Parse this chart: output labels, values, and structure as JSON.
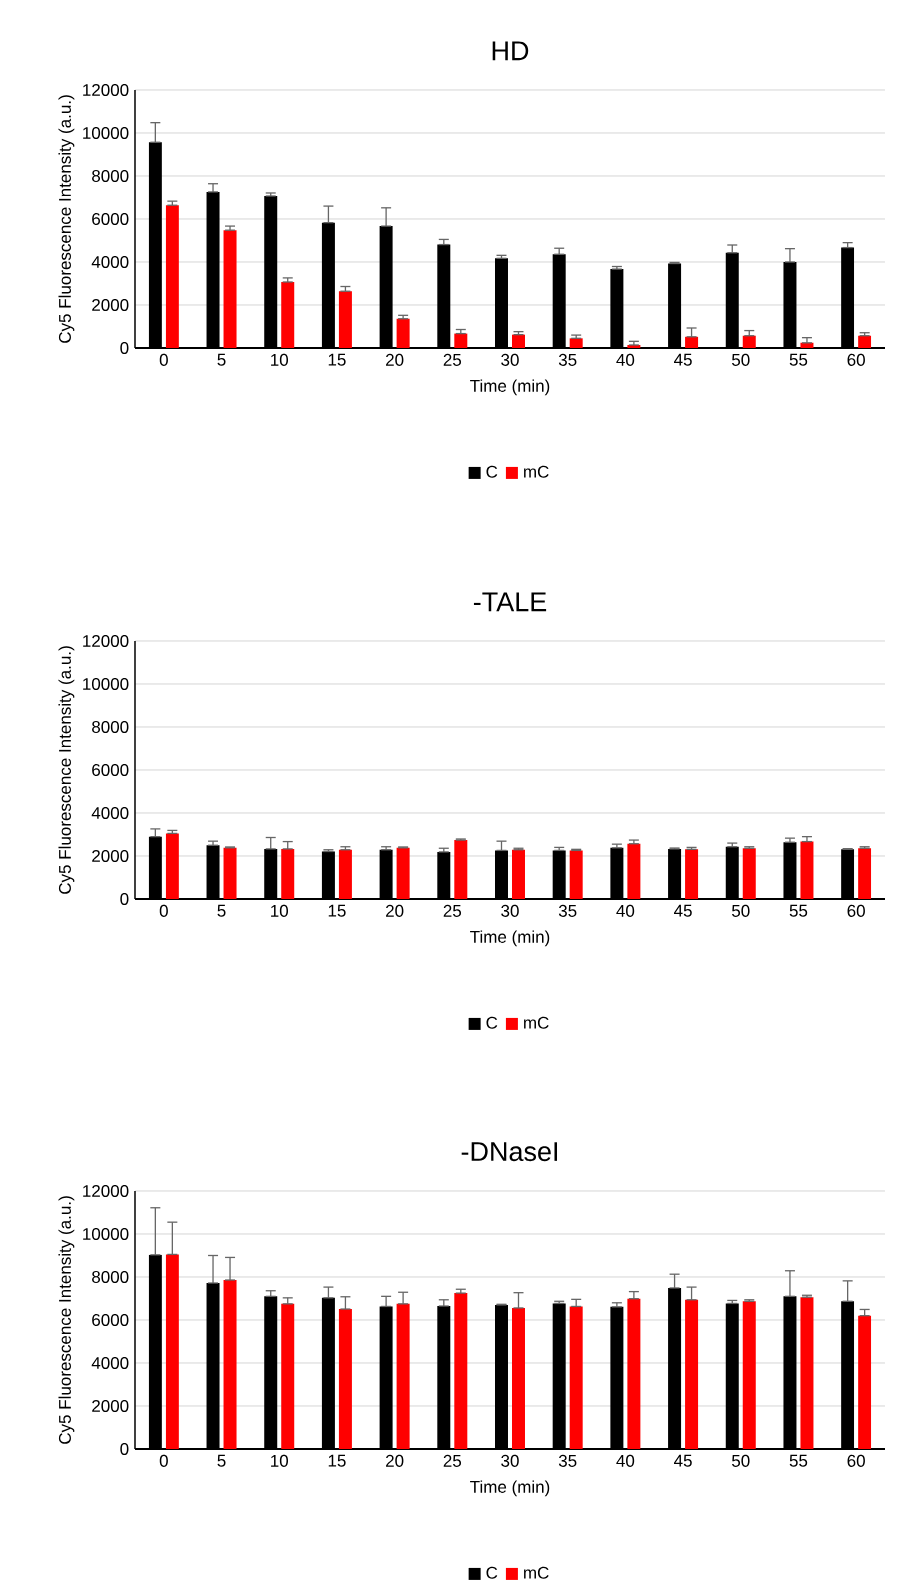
{
  "chart_data": [
    {
      "type": "bar",
      "title": "HD",
      "xlabel": "Time (min)",
      "ylabel": "Cy5 Fluorescence Intensity  (a.u.)",
      "categories": [
        "0",
        "5",
        "10",
        "15",
        "20",
        "25",
        "30",
        "35",
        "40",
        "45",
        "50",
        "55",
        "60"
      ],
      "series": [
        {
          "name": "C",
          "color": "#000000",
          "values": [
            9570,
            7260,
            7070,
            5830,
            5670,
            4810,
            4170,
            4360,
            3670,
            3930,
            4430,
            4000,
            4670
          ],
          "errors": [
            [
              9570,
              10480
            ],
            [
              7260,
              7640
            ],
            [
              7070,
              7210
            ],
            [
              5830,
              6600
            ],
            [
              5670,
              6520
            ],
            [
              4810,
              5050
            ],
            [
              4170,
              4310
            ],
            [
              4360,
              4640
            ],
            [
              3670,
              3790
            ],
            [
              3930,
              3980
            ],
            [
              4430,
              4790
            ],
            [
              4000,
              4620
            ],
            [
              4670,
              4900
            ]
          ]
        },
        {
          "name": "mC",
          "color": "#ff0000",
          "values": [
            6640,
            5480,
            3070,
            2640,
            1360,
            670,
            620,
            450,
            140,
            520,
            570,
            240,
            570
          ],
          "errors": [
            [
              6640,
              6830
            ],
            [
              5480,
              5670
            ],
            [
              3070,
              3260
            ],
            [
              2640,
              2860
            ],
            [
              1360,
              1520
            ],
            [
              670,
              860
            ],
            [
              620,
              760
            ],
            [
              450,
              600
            ],
            [
              140,
              310
            ],
            [
              520,
              930
            ],
            [
              570,
              810
            ],
            [
              240,
              480
            ],
            [
              570,
              710
            ]
          ]
        }
      ],
      "ylim": [
        0,
        12000
      ],
      "yticks": [
        0,
        2000,
        4000,
        6000,
        8000,
        10000,
        12000
      ],
      "grid": "y",
      "legend": "bottom"
    },
    {
      "type": "bar",
      "title": "-TALE",
      "xlabel": "Time (min)",
      "ylabel": "Cy5 Fluorescence Intensity (a.u.)",
      "categories": [
        "0",
        "5",
        "10",
        "15",
        "20",
        "25",
        "30",
        "35",
        "40",
        "45",
        "50",
        "55",
        "60"
      ],
      "series": [
        {
          "name": "C",
          "color": "#000000",
          "values": [
            2900,
            2500,
            2330,
            2210,
            2290,
            2190,
            2260,
            2260,
            2380,
            2330,
            2430,
            2640,
            2310
          ],
          "errors": [
            [
              2900,
              3260
            ],
            [
              2500,
              2690
            ],
            [
              2330,
              2860
            ],
            [
              2210,
              2290
            ],
            [
              2290,
              2430
            ],
            [
              2190,
              2360
            ],
            [
              2260,
              2690
            ],
            [
              2260,
              2400
            ],
            [
              2380,
              2550
            ],
            [
              2330,
              2370
            ],
            [
              2430,
              2600
            ],
            [
              2640,
              2830
            ],
            [
              2310,
              2340
            ]
          ]
        },
        {
          "name": "mC",
          "color": "#ff0000",
          "values": [
            3050,
            2380,
            2330,
            2290,
            2380,
            2740,
            2290,
            2260,
            2570,
            2310,
            2360,
            2670,
            2360
          ],
          "errors": [
            [
              3050,
              3190
            ],
            [
              2380,
              2420
            ],
            [
              2330,
              2670
            ],
            [
              2290,
              2430
            ],
            [
              2380,
              2420
            ],
            [
              2740,
              2790
            ],
            [
              2290,
              2360
            ],
            [
              2260,
              2310
            ],
            [
              2570,
              2740
            ],
            [
              2310,
              2400
            ],
            [
              2360,
              2430
            ],
            [
              2670,
              2900
            ],
            [
              2360,
              2430
            ]
          ]
        }
      ],
      "ylim": [
        0,
        12000
      ],
      "yticks": [
        0,
        2000,
        4000,
        6000,
        8000,
        10000,
        12000
      ],
      "grid": "y",
      "legend": "bottom"
    },
    {
      "type": "bar",
      "title": "-DNaseI",
      "xlabel": "Time (min)",
      "ylabel": "Cy5 Fluorescence Intensity (a.u.)",
      "categories": [
        "0",
        "5",
        "10",
        "15",
        "20",
        "25",
        "30",
        "35",
        "40",
        "45",
        "50",
        "55",
        "60"
      ],
      "series": [
        {
          "name": "C",
          "color": "#000000",
          "values": [
            9030,
            7720,
            7100,
            7030,
            6630,
            6650,
            6700,
            6770,
            6610,
            7490,
            6770,
            7100,
            6870
          ],
          "errors": [
            [
              9030,
              11220
            ],
            [
              7720,
              9000
            ],
            [
              7100,
              7360
            ],
            [
              7030,
              7530
            ],
            [
              6630,
              7100
            ],
            [
              6650,
              6940
            ],
            [
              6700,
              6730
            ],
            [
              6770,
              6870
            ],
            [
              6610,
              6800
            ],
            [
              7490,
              8130
            ],
            [
              6770,
              6910
            ],
            [
              7100,
              8290
            ],
            [
              6870,
              7820
            ]
          ]
        },
        {
          "name": "mC",
          "color": "#ff0000",
          "values": [
            9050,
            7860,
            6750,
            6510,
            6750,
            7250,
            6560,
            6630,
            6990,
            6940,
            6870,
            7060,
            6200
          ],
          "errors": [
            [
              9050,
              10550
            ],
            [
              7860,
              8910
            ],
            [
              6750,
              7030
            ],
            [
              6510,
              7080
            ],
            [
              6750,
              7290
            ],
            [
              7250,
              7430
            ],
            [
              6560,
              7270
            ],
            [
              6630,
              6960
            ],
            [
              6990,
              7320
            ],
            [
              6940,
              7530
            ],
            [
              6870,
              6940
            ],
            [
              7060,
              7150
            ],
            [
              6200,
              6490
            ]
          ]
        }
      ],
      "ylim": [
        0,
        12000
      ],
      "yticks": [
        0,
        2000,
        4000,
        6000,
        8000,
        10000,
        12000
      ],
      "grid": "y",
      "legend": "bottom"
    }
  ]
}
